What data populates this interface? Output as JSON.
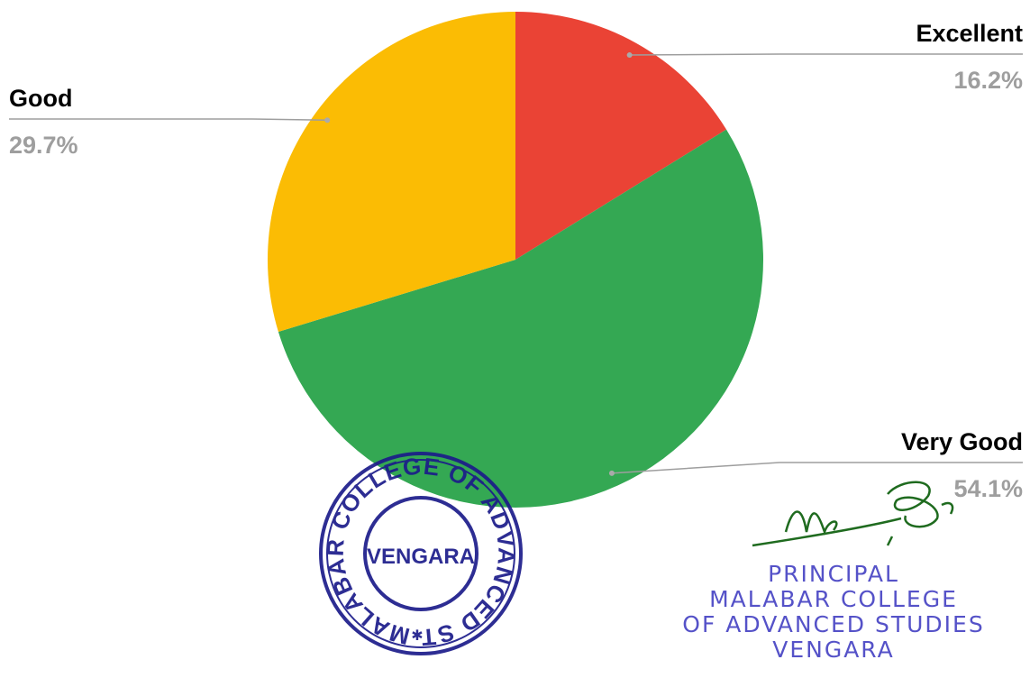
{
  "chart_data": {
    "type": "pie",
    "categories": [
      "Excellent",
      "Very Good",
      "Good"
    ],
    "values": [
      16.2,
      54.1,
      29.7
    ],
    "value_labels": [
      "16.2%",
      "54.1%",
      "29.7%"
    ],
    "colors": [
      "#ea4335",
      "#34a853",
      "#fbbc04"
    ]
  },
  "stamp": {
    "ring_text": "MALABAR COLLEGE OF ADVANCED STUDIES",
    "center_text": "VENGARA"
  },
  "seal": {
    "lines": [
      "PRINCIPAL",
      "MALABAR COLLEGE",
      "OF ADVANCED STUDIES",
      "VENGARA"
    ]
  }
}
